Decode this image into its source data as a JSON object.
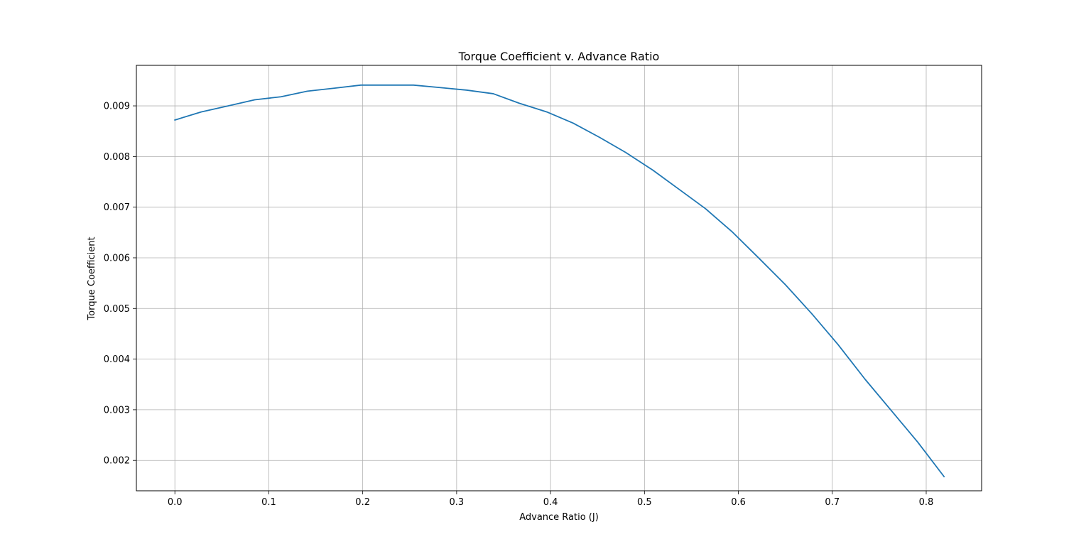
{
  "chart_data": {
    "type": "line",
    "title": "Torque Coefficient v. Advance Ratio",
    "xlabel": "Advance Ratio (J)",
    "ylabel": "Torque Coefficient",
    "xlim": [
      -0.041,
      0.859
    ],
    "ylim": [
      0.0014,
      0.0098
    ],
    "xticks": [
      0.0,
      0.1,
      0.2,
      0.3,
      0.4,
      0.5,
      0.6,
      0.7,
      0.8
    ],
    "xtick_labels": [
      "0.0",
      "0.1",
      "0.2",
      "0.3",
      "0.4",
      "0.5",
      "0.6",
      "0.7",
      "0.8"
    ],
    "yticks": [
      0.002,
      0.003,
      0.004,
      0.005,
      0.006,
      0.007,
      0.008,
      0.009
    ],
    "ytick_labels": [
      "0.002",
      "0.003",
      "0.004",
      "0.005",
      "0.006",
      "0.007",
      "0.008",
      "0.009"
    ],
    "grid": true,
    "series": [
      {
        "color": "#1f77b4",
        "x": [
          0.0,
          0.028,
          0.057,
          0.085,
          0.113,
          0.141,
          0.17,
          0.198,
          0.226,
          0.254,
          0.283,
          0.311,
          0.339,
          0.367,
          0.396,
          0.424,
          0.452,
          0.48,
          0.509,
          0.537,
          0.565,
          0.593,
          0.622,
          0.65,
          0.678,
          0.706,
          0.735,
          0.763,
          0.791,
          0.819
        ],
        "y": [
          0.00872,
          0.00888,
          0.009,
          0.00912,
          0.00918,
          0.00929,
          0.00935,
          0.00941,
          0.00941,
          0.00941,
          0.00936,
          0.00931,
          0.00924,
          0.00905,
          0.00888,
          0.00866,
          0.00838,
          0.00808,
          0.00773,
          0.00735,
          0.00697,
          0.00652,
          0.00599,
          0.00547,
          0.0049,
          0.00429,
          0.0036,
          0.00298,
          0.00236,
          0.00168
        ]
      }
    ]
  }
}
